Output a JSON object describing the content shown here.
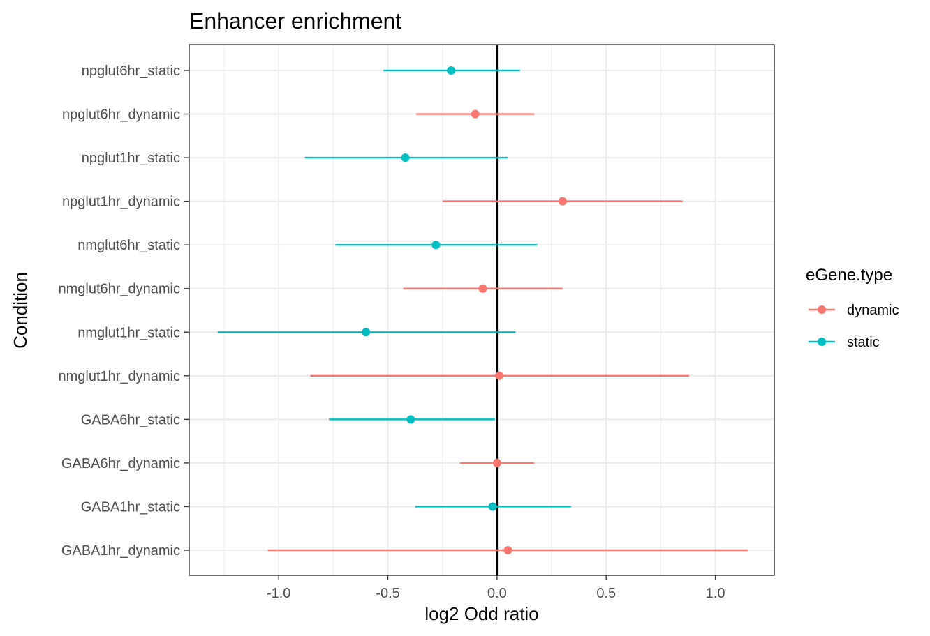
{
  "chart_data": {
    "type": "forest",
    "title": "Enhancer enrichment",
    "xlabel": "log2 Odd ratio",
    "ylabel": "Condition",
    "xlim": [
      -1.41,
      1.27
    ],
    "x_ticks": [
      -1.0,
      -0.5,
      0.0,
      0.5,
      1.0
    ],
    "x_tick_labels": [
      "-1.0",
      "-0.5",
      "0.0",
      "0.5",
      "1.0"
    ],
    "reference_line_x": 0,
    "grid": true,
    "legend": {
      "title": "eGene.type",
      "position": "right",
      "entries": [
        {
          "name": "dynamic",
          "color": "#F8766D"
        },
        {
          "name": "static",
          "color": "#00BFC4"
        }
      ]
    },
    "categories": [
      "npglut6hr_static",
      "npglut6hr_dynamic",
      "npglut1hr_static",
      "npglut1hr_dynamic",
      "nmglut6hr_static",
      "nmglut6hr_dynamic",
      "nmglut1hr_static",
      "nmglut1hr_dynamic",
      "GABA6hr_static",
      "GABA6hr_dynamic",
      "GABA1hr_static",
      "GABA1hr_dynamic"
    ],
    "points": [
      {
        "condition": "npglut6hr_static",
        "type": "static",
        "estimate": -0.21,
        "low": -0.52,
        "high": 0.105
      },
      {
        "condition": "npglut6hr_dynamic",
        "type": "dynamic",
        "estimate": -0.1,
        "low": -0.37,
        "high": 0.17
      },
      {
        "condition": "npglut1hr_static",
        "type": "static",
        "estimate": -0.42,
        "low": -0.88,
        "high": 0.05
      },
      {
        "condition": "npglut1hr_dynamic",
        "type": "dynamic",
        "estimate": 0.3,
        "low": -0.25,
        "high": 0.85
      },
      {
        "condition": "nmglut6hr_static",
        "type": "static",
        "estimate": -0.28,
        "low": -0.74,
        "high": 0.185
      },
      {
        "condition": "nmglut6hr_dynamic",
        "type": "dynamic",
        "estimate": -0.065,
        "low": -0.43,
        "high": 0.3
      },
      {
        "condition": "nmglut1hr_static",
        "type": "static",
        "estimate": -0.6,
        "low": -1.28,
        "high": 0.085
      },
      {
        "condition": "nmglut1hr_dynamic",
        "type": "dynamic",
        "estimate": 0.01,
        "low": -0.855,
        "high": 0.88
      },
      {
        "condition": "GABA6hr_static",
        "type": "static",
        "estimate": -0.395,
        "low": -0.77,
        "high": -0.01
      },
      {
        "condition": "GABA6hr_dynamic",
        "type": "dynamic",
        "estimate": 0.0,
        "low": -0.17,
        "high": 0.17
      },
      {
        "condition": "GABA1hr_static",
        "type": "static",
        "estimate": -0.02,
        "low": -0.375,
        "high": 0.34
      },
      {
        "condition": "GABA1hr_dynamic",
        "type": "dynamic",
        "estimate": 0.05,
        "low": -1.05,
        "high": 1.15
      }
    ]
  }
}
